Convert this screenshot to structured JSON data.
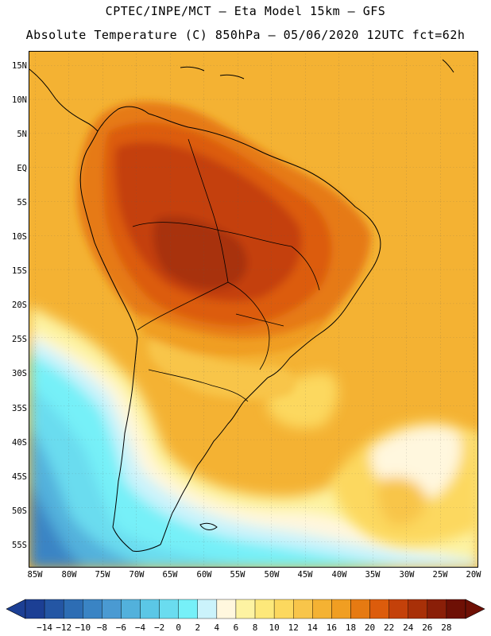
{
  "header": {
    "line1": "CPTEC/INPE/MCT –  Eta Model 15km – GFS",
    "line2": "Absolute Temperature (C) 850hPa – 05/06/2020 12UTC fct=62h"
  },
  "axes": {
    "lat_labels": [
      "15N",
      "10N",
      "5N",
      "EQ",
      "5S",
      "10S",
      "15S",
      "20S",
      "25S",
      "30S",
      "35S",
      "40S",
      "45S",
      "50S",
      "55S"
    ],
    "lon_labels": [
      "85W",
      "80W",
      "75W",
      "70W",
      "65W",
      "60W",
      "55W",
      "50W",
      "45W",
      "40W",
      "35W",
      "30W",
      "25W",
      "20W"
    ]
  },
  "colorbar": {
    "labels": [
      "-14",
      "-12",
      "-10",
      "-8",
      "-6",
      "-4",
      "-2",
      "0",
      "2",
      "4",
      "6",
      "8",
      "10",
      "12",
      "14",
      "16",
      "18",
      "20",
      "22",
      "24",
      "26",
      "28"
    ],
    "colors": [
      "#1c3f94",
      "#2456a4",
      "#2d6db4",
      "#3a84c4",
      "#4a9ad2",
      "#52b1dc",
      "#5bc7e6",
      "#6adcef",
      "#76f0f8",
      "#cbf3fb",
      "#fff7de",
      "#fdf3a2",
      "#fde87a",
      "#fcd85e",
      "#f8c54a",
      "#f4b233",
      "#f09e22",
      "#e67a12",
      "#dc5c0c",
      "#c4410a",
      "#a83008",
      "#8a1f08",
      "#6e1005"
    ]
  },
  "map_colors": {
    "ocean_warm": "#f4b233",
    "ocean_mid": "#fcd85e",
    "ocean_cool": "#fdf3a2",
    "cream": "#fff7de",
    "pale_cyan": "#cbf3fb",
    "cyan": "#76f0f8",
    "light_blue": "#6adcef",
    "mid_blue": "#52b1dc",
    "deep_blue": "#3a84c4",
    "land_hot": "#c4410a",
    "land_hotter": "#a83008",
    "land_warm": "#dc5c0c",
    "land_orange": "#e67a12"
  }
}
